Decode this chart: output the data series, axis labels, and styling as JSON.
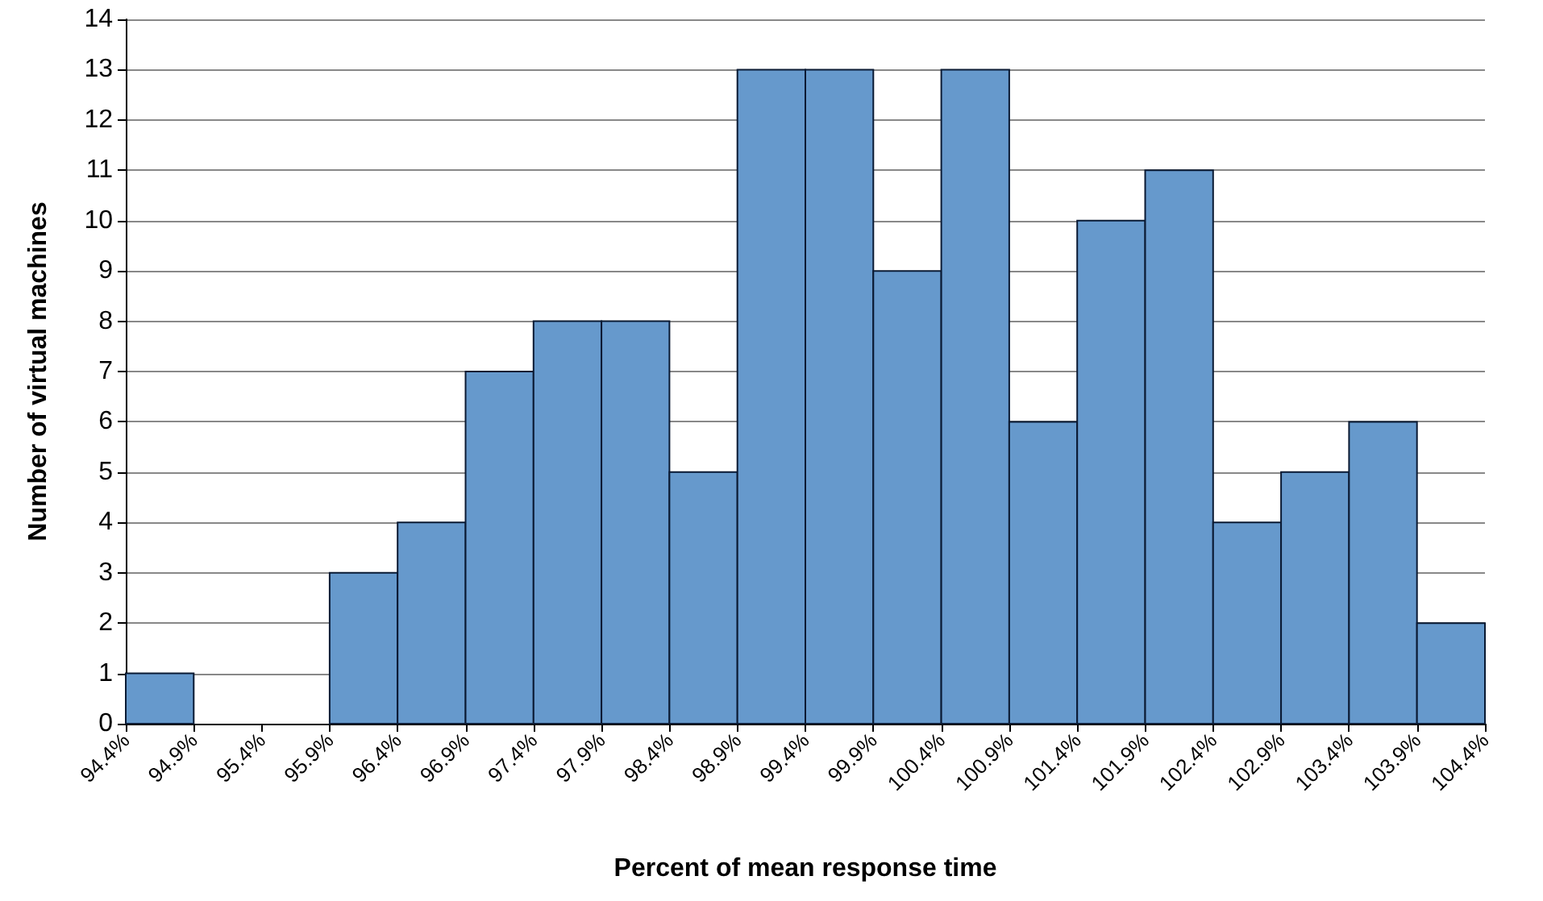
{
  "chart_data": {
    "type": "histogram",
    "xlabel": "Percent of mean response time",
    "ylabel": "Number of virtual machines",
    "bins": [
      94.4,
      94.9,
      95.4,
      95.9,
      96.4,
      96.9,
      97.4,
      97.9,
      98.4,
      98.9,
      99.4,
      99.9,
      100.4,
      100.9,
      101.4,
      101.9,
      102.4,
      102.9,
      103.4,
      103.9,
      104.4
    ],
    "values": [
      1,
      0,
      0,
      3,
      4,
      7,
      8,
      8,
      5,
      13,
      13,
      9,
      13,
      6,
      10,
      11,
      4,
      5,
      6,
      2
    ],
    "color": "#6699cc",
    "xlim": [
      94.4,
      104.4
    ],
    "xticks": [
      {
        "value": 94.4,
        "label": "94.4%"
      },
      {
        "value": 94.9,
        "label": "94.9%"
      },
      {
        "value": 95.4,
        "label": "95.4%"
      },
      {
        "value": 95.9,
        "label": "95.9%"
      },
      {
        "value": 96.4,
        "label": "96.4%"
      },
      {
        "value": 96.9,
        "label": "96.9%"
      },
      {
        "value": 97.4,
        "label": "97.4%"
      },
      {
        "value": 97.9,
        "label": "97.9%"
      },
      {
        "value": 98.4,
        "label": "98.4%"
      },
      {
        "value": 98.9,
        "label": "98.9%"
      },
      {
        "value": 99.4,
        "label": "99.4%"
      },
      {
        "value": 99.9,
        "label": "99.9%"
      },
      {
        "value": 100.4,
        "label": "100.4%"
      },
      {
        "value": 100.9,
        "label": "100.9%"
      },
      {
        "value": 101.4,
        "label": "101.4%"
      },
      {
        "value": 101.9,
        "label": "101.9%"
      },
      {
        "value": 102.4,
        "label": "102.4%"
      },
      {
        "value": 102.9,
        "label": "102.9%"
      },
      {
        "value": 103.4,
        "label": "103.4%"
      },
      {
        "value": 103.9,
        "label": "103.9%"
      },
      {
        "value": 104.4,
        "label": "104.4%"
      }
    ],
    "ylim": [
      0,
      14
    ],
    "yticks": [
      0,
      1,
      2,
      3,
      4,
      5,
      6,
      7,
      8,
      9,
      10,
      11,
      12,
      13,
      14
    ],
    "grid": "y"
  }
}
